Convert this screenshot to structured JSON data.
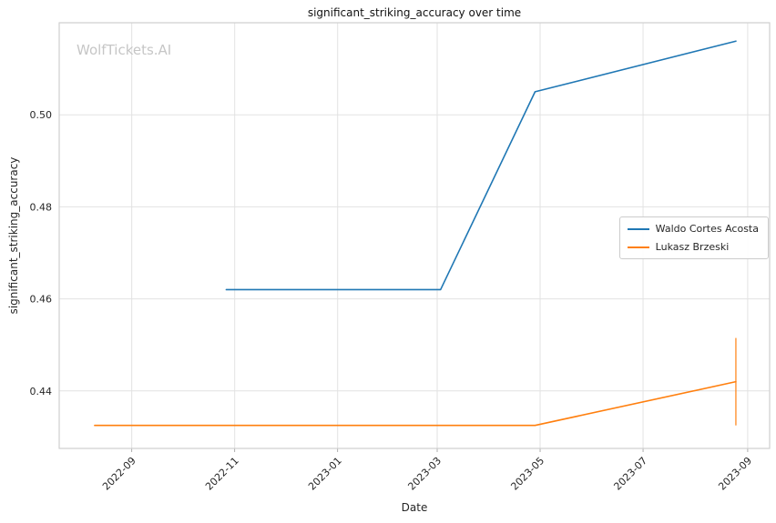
{
  "figure": {
    "watermark": "WolfTickets.AI"
  },
  "chart_data": {
    "type": "line",
    "title": "significant_striking_accuracy over time",
    "xlabel": "Date",
    "ylabel": "significant_striking_accuracy",
    "x_ticks": [
      "2022-09",
      "2022-11",
      "2023-01",
      "2023-03",
      "2023-05",
      "2023-07",
      "2023-09"
    ],
    "y_ticks": [
      0.44,
      0.46,
      0.48,
      0.5
    ],
    "x_domain": [
      "2022-07-20",
      "2023-09-14"
    ],
    "y_domain": [
      0.4275,
      0.52
    ],
    "grid": true,
    "legend_position": "center right",
    "series": [
      {
        "name": "Waldo Cortes Acosta",
        "color": "#1f77b4",
        "points": [
          [
            "2022-10-27",
            0.462
          ],
          [
            "2023-03-03",
            0.462
          ],
          [
            "2023-04-28",
            0.505
          ],
          [
            "2023-08-25",
            0.516
          ]
        ]
      },
      {
        "name": "Lukasz Brzeski",
        "color": "#ff7f0e",
        "points": [
          [
            "2022-08-10",
            0.4325
          ],
          [
            "2023-04-28",
            0.4325
          ],
          [
            "2023-08-25",
            0.442
          ]
        ],
        "final_vertical_segment": {
          "date": "2023-08-25",
          "from": 0.4325,
          "to": 0.4515
        }
      }
    ]
  }
}
